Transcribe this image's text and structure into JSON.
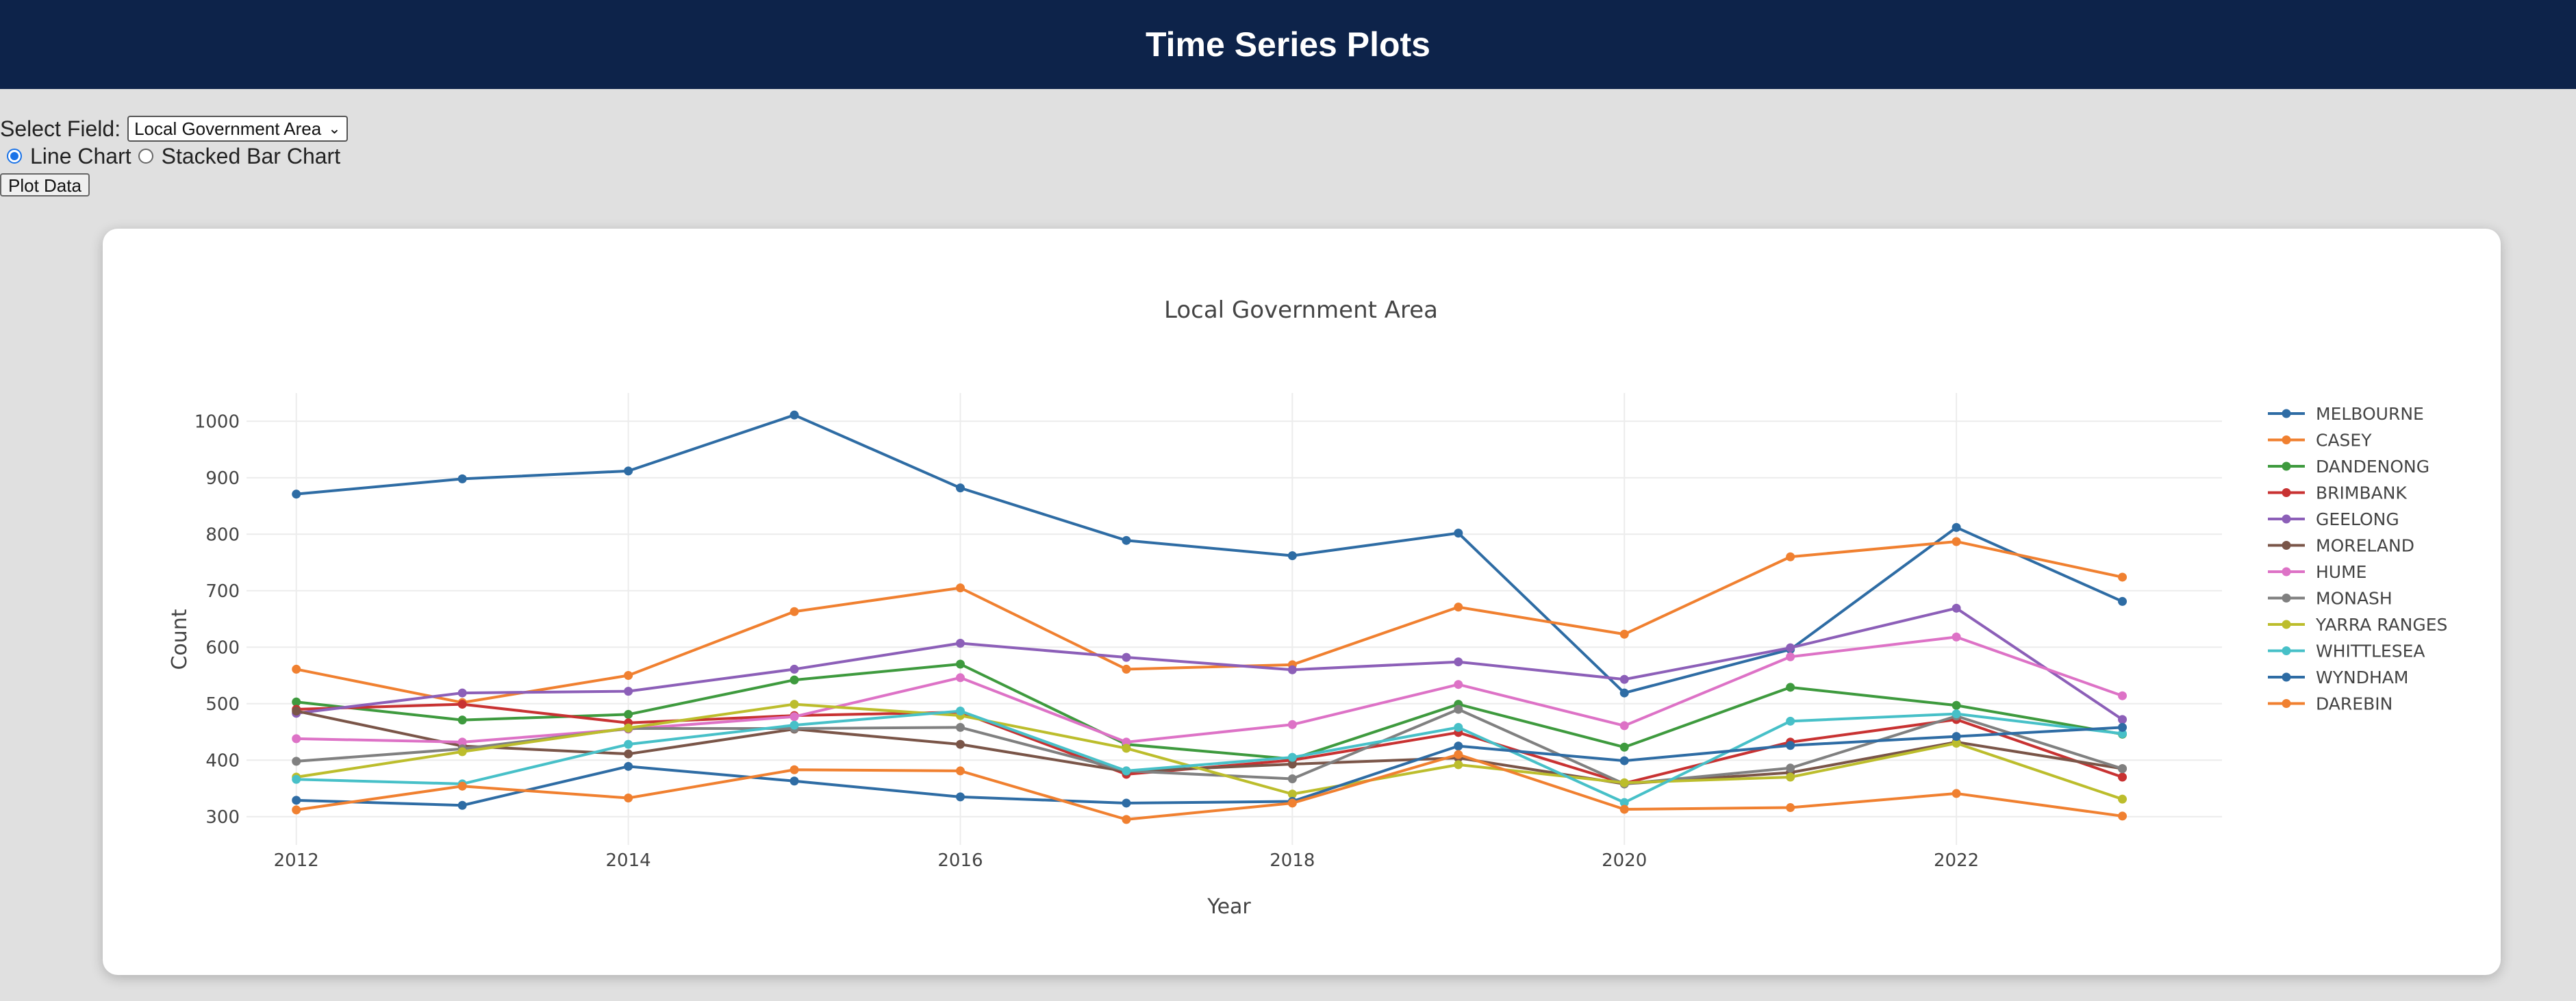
{
  "header": {
    "title": "Time Series Plots"
  },
  "controls": {
    "select_label": "Select Field:",
    "selected_field": "Local Government Area",
    "radio_line_label": "Line Chart",
    "radio_stacked_label": "Stacked Bar Chart",
    "selected_chart": "line",
    "plot_button_label": "Plot Data"
  },
  "chart_data": {
    "type": "line",
    "title": "Local Government Area",
    "xlabel": "Year",
    "ylabel": "Count",
    "x": [
      2012,
      2013,
      2014,
      2015,
      2016,
      2017,
      2018,
      2019,
      2020,
      2021,
      2022,
      2023
    ],
    "x_ticks": [
      2012,
      2014,
      2016,
      2018,
      2020,
      2022
    ],
    "y_ticks": [
      300,
      400,
      500,
      600,
      700,
      800,
      900,
      1000
    ],
    "xlim": [
      2011.7,
      2023.6
    ],
    "ylim": [
      250,
      1050
    ],
    "grid": true,
    "legend": "right",
    "series": [
      {
        "name": "MELBOURNE",
        "color": "#2e6ca4",
        "values": [
          871,
          898,
          912,
          1011,
          882,
          789,
          762,
          802,
          519,
          596,
          812,
          681
        ]
      },
      {
        "name": "CASEY",
        "color": "#f08030",
        "values": [
          561,
          502,
          550,
          663,
          705,
          561,
          569,
          671,
          623,
          760,
          787,
          724
        ]
      },
      {
        "name": "DANDENONG",
        "color": "#3e9a3e",
        "values": [
          503,
          471,
          481,
          542,
          570,
          428,
          402,
          499,
          423,
          529,
          497,
          446
        ]
      },
      {
        "name": "BRIMBANK",
        "color": "#c83232",
        "values": [
          490,
          499,
          466,
          479,
          485,
          375,
          400,
          449,
          359,
          432,
          472,
          370
        ]
      },
      {
        "name": "GEELONG",
        "color": "#8c5fb8",
        "values": [
          483,
          519,
          522,
          561,
          607,
          582,
          560,
          574,
          543,
          599,
          669,
          472
        ]
      },
      {
        "name": "MORELAND",
        "color": "#7a5548",
        "values": [
          487,
          425,
          411,
          455,
          428,
          380,
          393,
          404,
          358,
          378,
          432,
          385
        ]
      },
      {
        "name": "HUME",
        "color": "#dd72c6",
        "values": [
          438,
          432,
          455,
          477,
          546,
          432,
          463,
          534,
          461,
          583,
          618,
          514
        ]
      },
      {
        "name": "MONASH",
        "color": "#808080",
        "values": [
          398,
          420,
          456,
          456,
          458,
          381,
          367,
          490,
          358,
          386,
          478,
          385
        ]
      },
      {
        "name": "YARRA RANGES",
        "color": "#bcbd2c",
        "values": [
          370,
          415,
          457,
          499,
          479,
          421,
          340,
          392,
          360,
          370,
          430,
          331
        ]
      },
      {
        "name": "WHITTLESEA",
        "color": "#47c0c8",
        "values": [
          366,
          358,
          428,
          462,
          487,
          381,
          405,
          458,
          325,
          469,
          482,
          447
        ]
      },
      {
        "name": "WYNDHAM",
        "color": "#2e6ca4",
        "values": [
          329,
          320,
          389,
          363,
          335,
          324,
          327,
          425,
          399,
          426,
          442,
          458
        ]
      },
      {
        "name": "DAREBIN",
        "color": "#f08030",
        "values": [
          312,
          354,
          333,
          383,
          381,
          295,
          324,
          410,
          313,
          316,
          341,
          301
        ]
      }
    ]
  }
}
